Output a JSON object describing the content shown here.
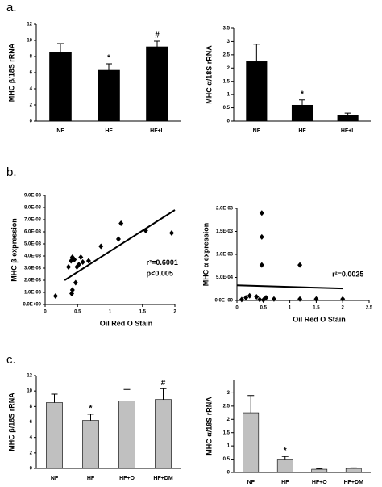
{
  "chart_data": [
    {
      "type": "bar",
      "panel": "a.",
      "ylabel": "MHC β/18S rRNA",
      "color": "#000000",
      "categories": [
        "NF",
        "HF",
        "HF+L"
      ],
      "values": [
        8.5,
        6.3,
        9.2
      ],
      "errors": [
        1.1,
        0.8,
        0.7
      ],
      "markers": [
        null,
        "*",
        "#"
      ],
      "ylim": [
        0,
        12
      ],
      "yticks": [
        0,
        2,
        4,
        6,
        8,
        10,
        12
      ]
    },
    {
      "type": "bar",
      "ylabel": "MHC α/18S rRNA",
      "color": "#000000",
      "categories": [
        "NF",
        "HF",
        "HF+L"
      ],
      "values": [
        2.25,
        0.6,
        0.22
      ],
      "errors": [
        0.65,
        0.2,
        0.08
      ],
      "markers": [
        null,
        "*",
        null
      ],
      "ylim": [
        0,
        3.5
      ],
      "yticks": [
        0,
        0.5,
        1,
        1.5,
        2,
        2.5,
        3,
        3.5
      ]
    },
    {
      "type": "scatter",
      "panel": "b.",
      "xlabel": "Oil Red O Stain",
      "ylabel": "MHC β expression",
      "x": [
        0.16,
        0.36,
        0.4,
        0.42,
        0.45,
        0.49,
        0.52,
        0.55,
        0.58,
        0.47,
        0.42,
        0.41,
        0.67,
        0.86,
        1.13,
        1.17,
        1.55,
        1.95
      ],
      "y": [
        0.0007,
        0.0031,
        0.0036,
        0.0039,
        0.0037,
        0.0031,
        0.0033,
        0.0039,
        0.0035,
        0.0018,
        0.0012,
        0.0009,
        0.0036,
        0.0048,
        0.0054,
        0.0067,
        0.0061,
        0.0059
      ],
      "fit": {
        "x": [
          0.3,
          2
        ],
        "y": [
          0.002,
          0.0078
        ]
      },
      "stats": [
        "r²=0.6001",
        "p<0.005"
      ],
      "xlim": [
        0,
        2
      ],
      "xticks": [
        0,
        0.5,
        1,
        1.5,
        2
      ],
      "ylim": [
        0,
        0.009
      ],
      "yticks": [
        {
          "value": 0,
          "label": "0.0E+00"
        },
        {
          "value": 0.001,
          "label": "1.0E-03"
        },
        {
          "value": 0.002,
          "label": "2.0E-03"
        },
        {
          "value": 0.003,
          "label": "3.0E-03"
        },
        {
          "value": 0.004,
          "label": "4.0E-03"
        },
        {
          "value": 0.005,
          "label": "5.0E-03"
        },
        {
          "value": 0.006,
          "label": "6.0E-03"
        },
        {
          "value": 0.007,
          "label": "7.0E-03"
        },
        {
          "value": 0.008,
          "label": "8.0E-03"
        },
        {
          "value": 0.009,
          "label": "9.0E-03"
        }
      ]
    },
    {
      "type": "scatter",
      "xlabel": "Oil Red O Stain",
      "ylabel": "MHC α expression",
      "x": [
        0.47,
        0.47,
        0.47,
        1.19,
        0.09,
        0.17,
        0.24,
        0.37,
        0.43,
        0.5,
        0.55,
        0.7,
        1.19,
        1.5,
        2.0
      ],
      "y": [
        0.0019,
        0.00138,
        0.00077,
        0.00077,
        2e-05,
        6e-05,
        0.0001,
        8e-05,
        2e-05,
        1e-05,
        6e-05,
        3e-05,
        3e-05,
        3e-05,
        3e-05
      ],
      "fit": {
        "x": [
          0,
          2
        ],
        "y": [
          0.00033,
          0.00026
        ]
      },
      "stats": [
        "r²=0.0025"
      ],
      "xlim": [
        0,
        2.5
      ],
      "xticks": [
        0,
        0.5,
        1,
        1.5,
        2,
        2.5
      ],
      "ylim": [
        0,
        0.002
      ],
      "yticks": [
        {
          "value": 0,
          "label": "0.0E+00"
        },
        {
          "value": 0.0005,
          "label": "5.0E-04"
        },
        {
          "value": 0.001,
          "label": "1.0E-03"
        },
        {
          "value": 0.0015,
          "label": "1.5E-03"
        },
        {
          "value": 0.002,
          "label": "2.0E-03"
        }
      ]
    },
    {
      "type": "bar",
      "panel": "c.",
      "ylabel": "MHC β/18S rRNA",
      "color": "#c0c0c0",
      "categories": [
        "NF",
        "HF",
        "HF+O",
        "HF+DM"
      ],
      "values": [
        8.5,
        6.2,
        8.7,
        8.9
      ],
      "errors": [
        1.1,
        0.8,
        1.5,
        1.4
      ],
      "markers": [
        null,
        "*",
        null,
        "#"
      ],
      "ylim": [
        0,
        12
      ],
      "yticks": [
        0,
        2,
        4,
        6,
        8,
        10,
        12
      ]
    },
    {
      "type": "bar",
      "ylabel": "MHC α/18S rRNA",
      "color": "#c0c0c0",
      "categories": [
        "NF",
        "HF",
        "HF+O",
        "HF+DM"
      ],
      "values": [
        2.25,
        0.5,
        0.12,
        0.15
      ],
      "errors": [
        0.65,
        0.1,
        0.02,
        0.02
      ],
      "markers": [
        null,
        "*",
        null,
        null
      ],
      "ylim": [
        0,
        3.5
      ],
      "yticks": [
        0,
        0.5,
        1,
        1.5,
        2,
        2.5,
        3
      ]
    }
  ]
}
